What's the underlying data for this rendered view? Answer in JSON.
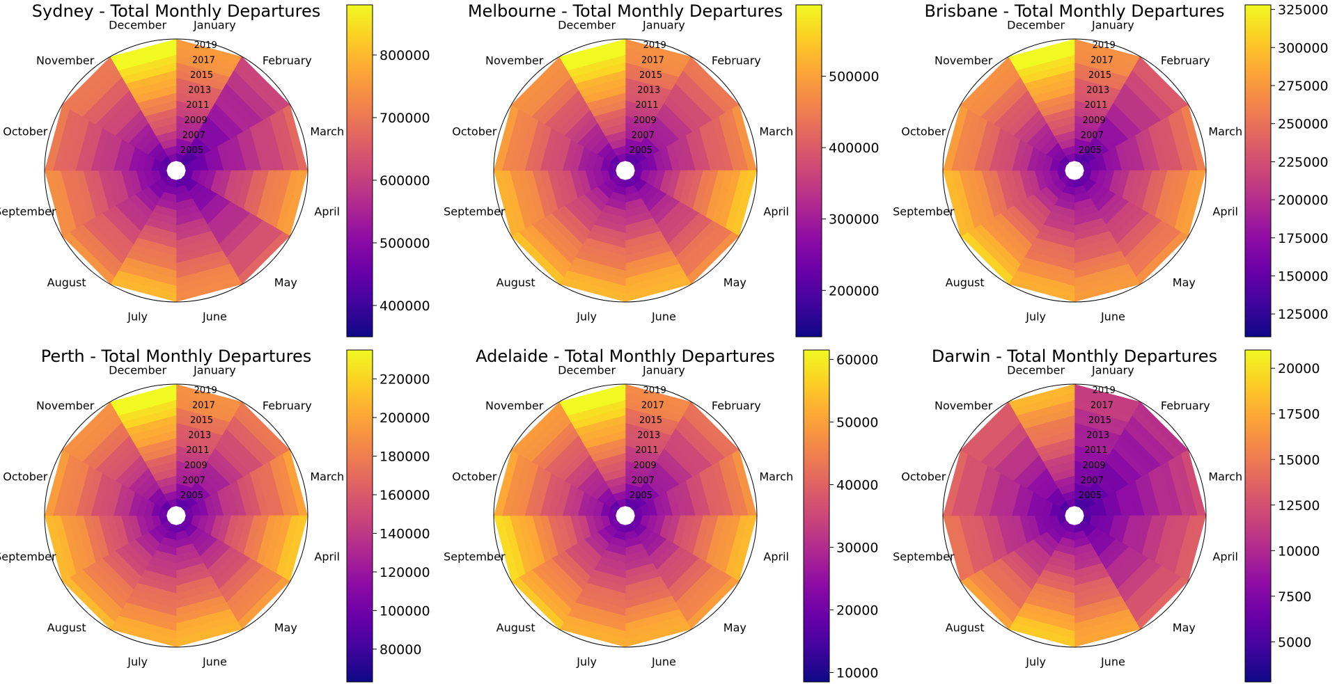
{
  "chart_data": [
    {
      "type": "heatmap",
      "title": "Sydney - Total Monthly Departures",
      "radial_axis": "year",
      "angular_axis": "month",
      "months": [
        "January",
        "February",
        "March",
        "April",
        "May",
        "June",
        "July",
        "August",
        "September",
        "October",
        "November",
        "December"
      ],
      "years": [
        2004,
        2005,
        2006,
        2007,
        2008,
        2009,
        2010,
        2011,
        2012,
        2013,
        2014,
        2015,
        2016,
        2017,
        2018,
        2019
      ],
      "year_tick_labels": [
        "2005",
        "2007",
        "2009",
        "2011",
        "2013",
        "2015",
        "2017",
        "2019"
      ],
      "colormap": "plasma",
      "colorbar": {
        "min": 350000,
        "max": 880000,
        "ticks": [
          "400000",
          "500000",
          "600000",
          "700000",
          "800000"
        ]
      },
      "month_scale": [
        0.75,
        0.45,
        0.55,
        0.75,
        0.55,
        0.7,
        0.8,
        0.68,
        0.7,
        0.62,
        0.65,
        1.0
      ],
      "grid": "off",
      "legend": "colorbar-right"
    },
    {
      "type": "heatmap",
      "title": "Melbourne - Total Monthly Departures",
      "radial_axis": "year",
      "angular_axis": "month",
      "months": [
        "January",
        "February",
        "March",
        "April",
        "May",
        "June",
        "July",
        "August",
        "September",
        "October",
        "November",
        "December"
      ],
      "years": [
        2004,
        2005,
        2006,
        2007,
        2008,
        2009,
        2010,
        2011,
        2012,
        2013,
        2014,
        2015,
        2016,
        2017,
        2018,
        2019
      ],
      "year_tick_labels": [
        "2005",
        "2007",
        "2009",
        "2011",
        "2013",
        "2015",
        "2017",
        "2019"
      ],
      "colormap": "plasma",
      "colorbar": {
        "min": 135000,
        "max": 600000,
        "ticks": [
          "200000",
          "300000",
          "400000",
          "500000"
        ]
      },
      "month_scale": [
        0.72,
        0.62,
        0.68,
        0.85,
        0.68,
        0.82,
        0.8,
        0.8,
        0.8,
        0.72,
        0.72,
        1.0
      ],
      "grid": "off",
      "legend": "colorbar-right"
    },
    {
      "type": "heatmap",
      "title": "Brisbane - Total Monthly Departures",
      "radial_axis": "year",
      "angular_axis": "month",
      "months": [
        "January",
        "February",
        "March",
        "April",
        "May",
        "June",
        "July",
        "August",
        "September",
        "October",
        "November",
        "December"
      ],
      "years": [
        2004,
        2005,
        2006,
        2007,
        2008,
        2009,
        2010,
        2011,
        2012,
        2013,
        2014,
        2015,
        2016,
        2017,
        2018,
        2019
      ],
      "year_tick_labels": [
        "2005",
        "2007",
        "2009",
        "2011",
        "2013",
        "2015",
        "2017",
        "2019"
      ],
      "colormap": "plasma",
      "colorbar": {
        "min": 110000,
        "max": 328000,
        "ticks": [
          "125000",
          "150000",
          "175000",
          "200000",
          "225000",
          "250000",
          "275000",
          "300000",
          "325000"
        ]
      },
      "month_scale": [
        0.72,
        0.52,
        0.62,
        0.75,
        0.68,
        0.75,
        0.78,
        0.85,
        0.82,
        0.72,
        0.72,
        1.0
      ],
      "grid": "off",
      "legend": "colorbar-right"
    },
    {
      "type": "heatmap",
      "title": "Perth - Total Monthly Departures",
      "radial_axis": "year",
      "angular_axis": "month",
      "months": [
        "January",
        "February",
        "March",
        "April",
        "May",
        "June",
        "July",
        "August",
        "September",
        "October",
        "November",
        "December"
      ],
      "years": [
        2004,
        2005,
        2006,
        2007,
        2008,
        2009,
        2010,
        2011,
        2012,
        2013,
        2014,
        2015,
        2016,
        2017,
        2018,
        2019
      ],
      "year_tick_labels": [
        "2005",
        "2007",
        "2009",
        "2011",
        "2013",
        "2015",
        "2017",
        "2019"
      ],
      "colormap": "plasma",
      "colorbar": {
        "min": 63000,
        "max": 235000,
        "ticks": [
          "80000",
          "100000",
          "120000",
          "140000",
          "160000",
          "180000",
          "200000",
          "220000"
        ]
      },
      "month_scale": [
        0.72,
        0.62,
        0.72,
        0.85,
        0.72,
        0.82,
        0.78,
        0.78,
        0.82,
        0.72,
        0.72,
        1.0
      ],
      "grid": "off",
      "legend": "colorbar-right"
    },
    {
      "type": "heatmap",
      "title": "Adelaide - Total Monthly Departures",
      "radial_axis": "year",
      "angular_axis": "month",
      "months": [
        "January",
        "February",
        "March",
        "April",
        "May",
        "June",
        "July",
        "August",
        "September",
        "October",
        "November",
        "December"
      ],
      "years": [
        2004,
        2005,
        2006,
        2007,
        2008,
        2009,
        2010,
        2011,
        2012,
        2013,
        2014,
        2015,
        2016,
        2017,
        2018,
        2019
      ],
      "year_tick_labels": [
        "2005",
        "2007",
        "2009",
        "2011",
        "2013",
        "2015",
        "2017",
        "2019"
      ],
      "colormap": "plasma",
      "colorbar": {
        "min": 8500,
        "max": 61500,
        "ticks": [
          "10000",
          "20000",
          "30000",
          "40000",
          "50000",
          "60000"
        ]
      },
      "month_scale": [
        0.7,
        0.6,
        0.68,
        0.82,
        0.72,
        0.8,
        0.78,
        0.82,
        0.9,
        0.75,
        0.75,
        1.0
      ],
      "grid": "off",
      "legend": "colorbar-right"
    },
    {
      "type": "heatmap",
      "title": "Darwin - Total Monthly Departures",
      "radial_axis": "year",
      "angular_axis": "month",
      "months": [
        "January",
        "February",
        "March",
        "April",
        "May",
        "June",
        "July",
        "August",
        "September",
        "October",
        "November",
        "December"
      ],
      "years": [
        2004,
        2005,
        2006,
        2007,
        2008,
        2009,
        2010,
        2011,
        2012,
        2013,
        2014,
        2015,
        2016,
        2017,
        2018,
        2019
      ],
      "year_tick_labels": [
        "2005",
        "2007",
        "2009",
        "2011",
        "2013",
        "2015",
        "2017",
        "2019"
      ],
      "colormap": "plasma",
      "colorbar": {
        "min": 2800,
        "max": 21000,
        "ticks": [
          "5000",
          "7500",
          "10000",
          "12500",
          "15000",
          "17500",
          "20000"
        ]
      },
      "month_scale": [
        0.45,
        0.38,
        0.45,
        0.55,
        0.55,
        0.78,
        0.85,
        0.72,
        0.62,
        0.55,
        0.55,
        0.8
      ],
      "grid": "off",
      "legend": "colorbar-right"
    }
  ]
}
